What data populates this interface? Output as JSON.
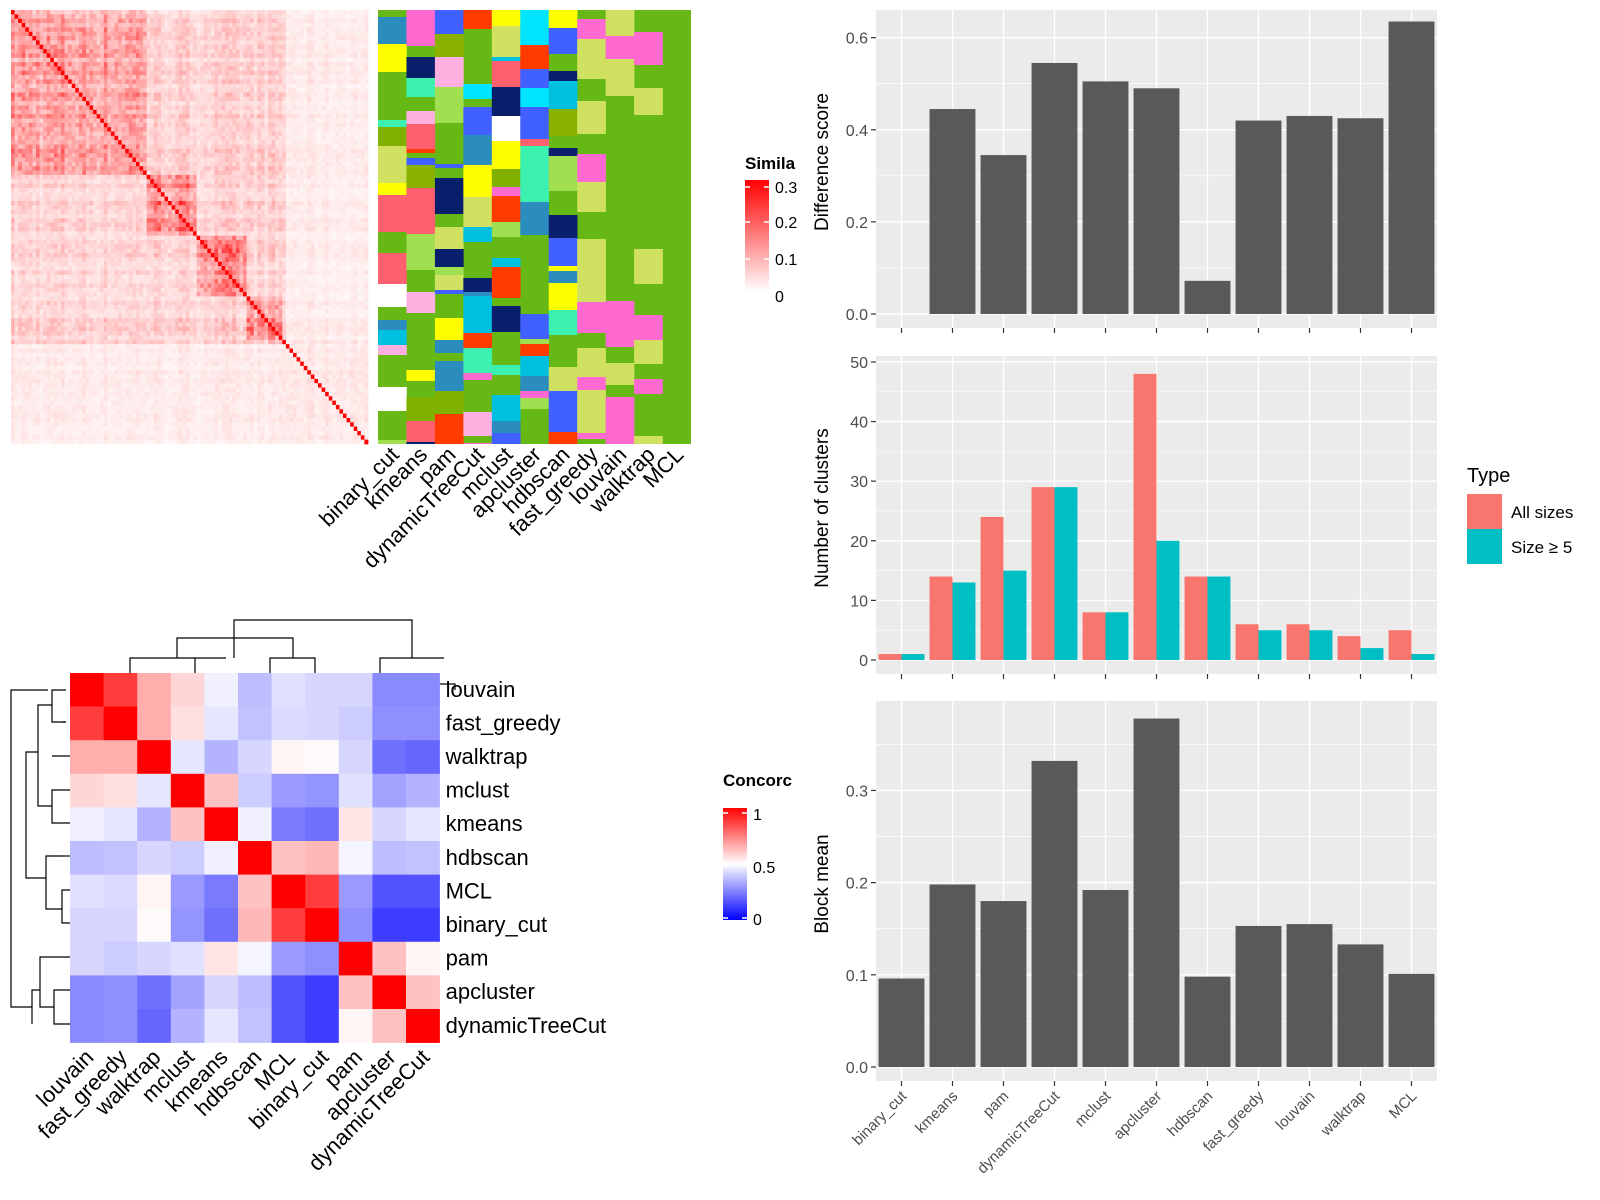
{
  "panels": {
    "similarity": {
      "legend_title": "Simila",
      "legend_ticks": [
        "0.3",
        "0.2",
        "0.1",
        "0"
      ],
      "methods": [
        "binary_cut",
        "kmeans",
        "pam",
        "dynamicTreeCut",
        "mclust",
        "apcluster",
        "hdbscan",
        "fast_greedy",
        "louvain",
        "walktrap",
        "MCL"
      ]
    },
    "concordance": {
      "legend_title": "Concorc",
      "legend_ticks": [
        "1",
        "0.5",
        "0"
      ],
      "methods": [
        "louvain",
        "fast_greedy",
        "walktrap",
        "mclust",
        "kmeans",
        "hdbscan",
        "MCL",
        "binary_cut",
        "pam",
        "apcluster",
        "dynamicTreeCut"
      ]
    }
  },
  "colors": {
    "bar": "#595959",
    "panel_bg": "#ebebeb",
    "all_sizes": "#f8766d",
    "size_ge5": "#00bfc4",
    "sim_high": "#ff0000",
    "conc_low": "#0000ff",
    "membership_bg": "#66b814"
  },
  "chart_data": [
    {
      "type": "heatmap",
      "title": "",
      "legend_title": "Simila",
      "value_range": [
        0,
        0.3
      ],
      "columns": [
        "binary_cut",
        "kmeans",
        "pam",
        "dynamicTreeCut",
        "mclust",
        "apcluster",
        "hdbscan",
        "fast_greedy",
        "louvain",
        "walktrap",
        "MCL"
      ]
    },
    {
      "type": "heatmap",
      "title": "",
      "legend_title": "Concorc",
      "value_range": [
        0,
        1
      ],
      "rows": [
        "louvain",
        "fast_greedy",
        "walktrap",
        "mclust",
        "kmeans",
        "hdbscan",
        "MCL",
        "binary_cut",
        "pam",
        "apcluster",
        "dynamicTreeCut"
      ],
      "columns": [
        "louvain",
        "fast_greedy",
        "walktrap",
        "mclust",
        "kmeans",
        "hdbscan",
        "MCL",
        "binary_cut",
        "pam",
        "apcluster",
        "dynamicTreeCut"
      ],
      "values": [
        [
          1.0,
          0.88,
          0.66,
          0.58,
          0.47,
          0.37,
          0.44,
          0.42,
          0.42,
          0.27,
          0.27
        ],
        [
          0.88,
          1.0,
          0.66,
          0.56,
          0.45,
          0.38,
          0.43,
          0.42,
          0.4,
          0.28,
          0.28
        ],
        [
          0.66,
          0.66,
          1.0,
          0.45,
          0.35,
          0.42,
          0.52,
          0.51,
          0.42,
          0.22,
          0.2
        ],
        [
          0.58,
          0.56,
          0.45,
          1.0,
          0.62,
          0.4,
          0.3,
          0.29,
          0.44,
          0.32,
          0.35
        ],
        [
          0.47,
          0.45,
          0.35,
          0.62,
          1.0,
          0.47,
          0.24,
          0.22,
          0.55,
          0.42,
          0.45
        ],
        [
          0.37,
          0.38,
          0.42,
          0.4,
          0.47,
          1.0,
          0.62,
          0.64,
          0.48,
          0.37,
          0.38
        ],
        [
          0.44,
          0.43,
          0.52,
          0.3,
          0.24,
          0.62,
          1.0,
          0.88,
          0.3,
          0.16,
          0.16
        ],
        [
          0.42,
          0.42,
          0.51,
          0.29,
          0.22,
          0.64,
          0.88,
          1.0,
          0.28,
          0.12,
          0.12
        ],
        [
          0.42,
          0.4,
          0.42,
          0.44,
          0.55,
          0.48,
          0.3,
          0.28,
          1.0,
          0.62,
          0.52
        ],
        [
          0.27,
          0.28,
          0.22,
          0.32,
          0.42,
          0.37,
          0.16,
          0.12,
          0.62,
          1.0,
          0.62
        ],
        [
          0.27,
          0.28,
          0.2,
          0.35,
          0.45,
          0.38,
          0.16,
          0.12,
          0.52,
          0.62,
          1.0
        ]
      ]
    },
    {
      "type": "bar",
      "title": "",
      "xlabel": "",
      "ylabel": "Difference score",
      "categories": [
        "binary_cut",
        "kmeans",
        "pam",
        "dynamicTreeCut",
        "mclust",
        "apcluster",
        "hdbscan",
        "fast_greedy",
        "louvain",
        "walktrap",
        "MCL"
      ],
      "values": [
        0.0,
        0.445,
        0.345,
        0.545,
        0.505,
        0.49,
        0.072,
        0.42,
        0.43,
        0.425,
        0.635
      ],
      "ylim": [
        0,
        0.66
      ],
      "yticks": [
        "0.0",
        "0.2",
        "0.4",
        "0.6"
      ]
    },
    {
      "type": "bar",
      "title": "",
      "xlabel": "",
      "ylabel": "Number of clusters",
      "categories": [
        "binary_cut",
        "kmeans",
        "pam",
        "dynamicTreeCut",
        "mclust",
        "apcluster",
        "hdbscan",
        "fast_greedy",
        "louvain",
        "walktrap",
        "MCL"
      ],
      "legend_title": "Type",
      "legend_position": "right",
      "series": [
        {
          "name": "All sizes",
          "values": [
            1,
            14,
            24,
            29,
            8,
            48,
            14,
            6,
            6,
            4,
            5
          ]
        },
        {
          "name": "Size ≥ 5",
          "values": [
            1,
            13,
            15,
            29,
            8,
            20,
            14,
            5,
            5,
            2,
            1
          ]
        }
      ],
      "ylim": [
        0,
        51
      ],
      "yticks": [
        "0",
        "10",
        "20",
        "30",
        "40",
        "50"
      ]
    },
    {
      "type": "bar",
      "title": "",
      "xlabel": "",
      "ylabel": "Block mean",
      "categories": [
        "binary_cut",
        "kmeans",
        "pam",
        "dynamicTreeCut",
        "mclust",
        "apcluster",
        "hdbscan",
        "fast_greedy",
        "louvain",
        "walktrap",
        "MCL"
      ],
      "values": [
        0.096,
        0.198,
        0.18,
        0.332,
        0.192,
        0.378,
        0.098,
        0.153,
        0.155,
        0.133,
        0.101
      ],
      "ylim": [
        0,
        0.397
      ],
      "yticks": [
        "0.0",
        "0.1",
        "0.2",
        "0.3"
      ]
    }
  ]
}
